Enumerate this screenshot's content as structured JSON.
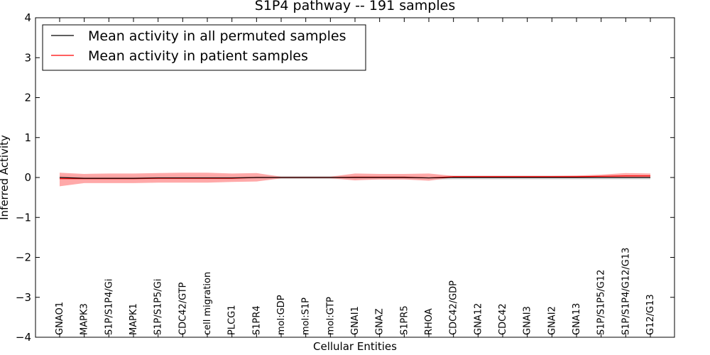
{
  "chart_data": {
    "type": "line",
    "title": "S1P4 pathway -- 191 samples",
    "xlabel": "Cellular Entities",
    "ylabel": "Inferred Activity",
    "ylim": [
      -4,
      4
    ],
    "yticks": [
      "−4",
      "−3",
      "−2",
      "−1",
      "0",
      "1",
      "2",
      "3",
      "4"
    ],
    "categories": [
      "GNAO1",
      "MAPK3",
      "S1P/S1P4/Gi",
      "MAPK1",
      "S1P/S1P5/Gi",
      "CDC42/GTP",
      "cell migration",
      "PLCG1",
      "S1PR4",
      "mol:GDP",
      "mol:S1P",
      "mol:GTP",
      "GNAI1",
      "GNAZ",
      "S1PR5",
      "RHOA",
      "CDC42/GDP",
      "GNA12",
      "CDC42",
      "GNAI3",
      "GNAI2",
      "GNA13",
      "S1P/S1P5/G12",
      "S1P/S1P4/G12/G13",
      "G12/G13"
    ],
    "series": [
      {
        "name": "Mean activity in all permuted samples",
        "color": "#000000",
        "values": [
          0.0,
          -0.02,
          -0.02,
          -0.02,
          -0.01,
          -0.01,
          -0.01,
          -0.01,
          0.0,
          0.0,
          0.0,
          0.0,
          0.0,
          0.0,
          0.0,
          -0.01,
          0.0,
          0.0,
          0.0,
          0.0,
          0.0,
          0.0,
          0.0,
          0.0,
          0.0
        ],
        "band_lower": [
          -0.06,
          -0.06,
          -0.06,
          -0.06,
          -0.06,
          -0.06,
          -0.06,
          -0.06,
          -0.04,
          -0.04,
          -0.04,
          -0.04,
          -0.05,
          -0.05,
          -0.05,
          -0.06,
          -0.05,
          -0.05,
          -0.05,
          -0.05,
          -0.05,
          -0.05,
          -0.05,
          -0.05,
          -0.05
        ],
        "band_upper": [
          0.06,
          0.05,
          0.05,
          0.05,
          0.05,
          0.05,
          0.05,
          0.05,
          0.04,
          0.04,
          0.04,
          0.04,
          0.05,
          0.05,
          0.05,
          0.05,
          0.05,
          0.05,
          0.05,
          0.05,
          0.05,
          0.05,
          0.05,
          0.05,
          0.05
        ]
      },
      {
        "name": "Mean activity in patient samples",
        "color": "#ff0000",
        "band_color": "#ff9a9a",
        "values": [
          -0.03,
          -0.03,
          -0.03,
          -0.03,
          -0.02,
          -0.02,
          -0.02,
          -0.02,
          0.0,
          0.0,
          0.0,
          0.0,
          0.01,
          0.01,
          0.01,
          -0.01,
          0.02,
          0.02,
          0.02,
          0.02,
          0.02,
          0.02,
          0.03,
          0.04,
          0.04
        ],
        "band_lower": [
          -0.22,
          -0.14,
          -0.14,
          -0.14,
          -0.13,
          -0.13,
          -0.13,
          -0.11,
          -0.1,
          -0.02,
          -0.02,
          -0.02,
          -0.07,
          -0.05,
          -0.05,
          -0.08,
          0.0,
          0.0,
          0.0,
          0.0,
          0.0,
          0.0,
          0.0,
          0.0,
          0.0
        ],
        "band_upper": [
          0.12,
          0.09,
          0.1,
          0.1,
          0.11,
          0.12,
          0.12,
          0.1,
          0.11,
          0.02,
          0.02,
          0.02,
          0.1,
          0.09,
          0.09,
          0.1,
          0.04,
          0.04,
          0.04,
          0.04,
          0.04,
          0.05,
          0.07,
          0.11,
          0.1
        ]
      }
    ],
    "legend_position": "upper-left",
    "grid": false
  }
}
